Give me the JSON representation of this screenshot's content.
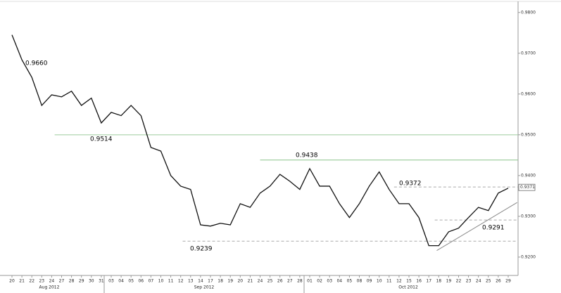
{
  "chart_data": {
    "type": "line",
    "categories": [
      "20",
      "21",
      "22",
      "23",
      "24",
      "27",
      "28",
      "29",
      "30",
      "31",
      "03",
      "04",
      "05",
      "06",
      "07",
      "10",
      "11",
      "12",
      "13",
      "14",
      "17",
      "18",
      "19",
      "20",
      "21",
      "24",
      "25",
      "26",
      "27",
      "28",
      "01",
      "02",
      "03",
      "04",
      "05",
      "08",
      "09",
      "10",
      "11",
      "12",
      "15",
      "16",
      "17",
      "18",
      "19",
      "22",
      "23",
      "24",
      "25",
      "26",
      "29"
    ],
    "month_labels": [
      "Aug 2012",
      "Sep 2012",
      "Oct 2012"
    ],
    "series": [
      {
        "color": "#111111",
        "values": [
          0.9745,
          0.9684,
          0.9641,
          0.9572,
          0.9598,
          0.9593,
          0.9607,
          0.9572,
          0.959,
          0.9529,
          0.9555,
          0.9547,
          0.9572,
          0.9547,
          0.9469,
          0.946,
          0.94,
          0.9374,
          0.9366,
          0.9279,
          0.9276,
          0.9283,
          0.9279,
          0.9331,
          0.9322,
          0.9357,
          0.9374,
          0.9403,
          0.9386,
          0.9366,
          0.9417,
          0.9374,
          0.9374,
          0.9331,
          0.9297,
          0.9331,
          0.9374,
          0.9409,
          0.9366,
          0.9331,
          0.9331,
          0.9297,
          0.9228,
          0.9228,
          0.9262,
          0.9271,
          0.9297,
          0.9322,
          0.9314,
          0.9357,
          0.9369
        ]
      }
    ],
    "ylim": [
      0.9155,
      0.9822
    ],
    "yticks": [
      {
        "value": 0.92,
        "label": "0.9200"
      },
      {
        "value": 0.93,
        "label": "0.9300"
      },
      {
        "value": 0.94,
        "label": "0.9400"
      },
      {
        "value": 0.95,
        "label": "0.9500"
      },
      {
        "value": 0.96,
        "label": "0.9600"
      },
      {
        "value": 0.97,
        "label": "0.9700"
      },
      {
        "value": 0.98,
        "label": "0.9800"
      }
    ],
    "levels": [
      {
        "value": 0.95,
        "x_start": 4.3,
        "color": "#9ccc9c",
        "dashed": false
      },
      {
        "value": 0.9438,
        "x_start": 25,
        "color": "#8cc48c",
        "dashed": false
      },
      {
        "value": 0.9372,
        "x_start": 38.5,
        "color": "#aaaaaa",
        "dashed": true
      },
      {
        "value": 0.9291,
        "x_start": 42.6,
        "color": "#aaaaaa",
        "dashed": true
      },
      {
        "value": 0.9239,
        "x_start": 17.2,
        "color": "#aaaaaa",
        "dashed": true
      }
    ],
    "trendline": {
      "x": [
        42.8,
        50.9
      ],
      "y": [
        0.9216,
        0.9334
      ],
      "color": "#888888"
    },
    "annotations": [
      "0.9660",
      "0.9514",
      "0.9438",
      "0.9372",
      "0.9291",
      "0.9239"
    ],
    "last_price": {
      "value": 0.9371,
      "label": "0.9371"
    }
  }
}
